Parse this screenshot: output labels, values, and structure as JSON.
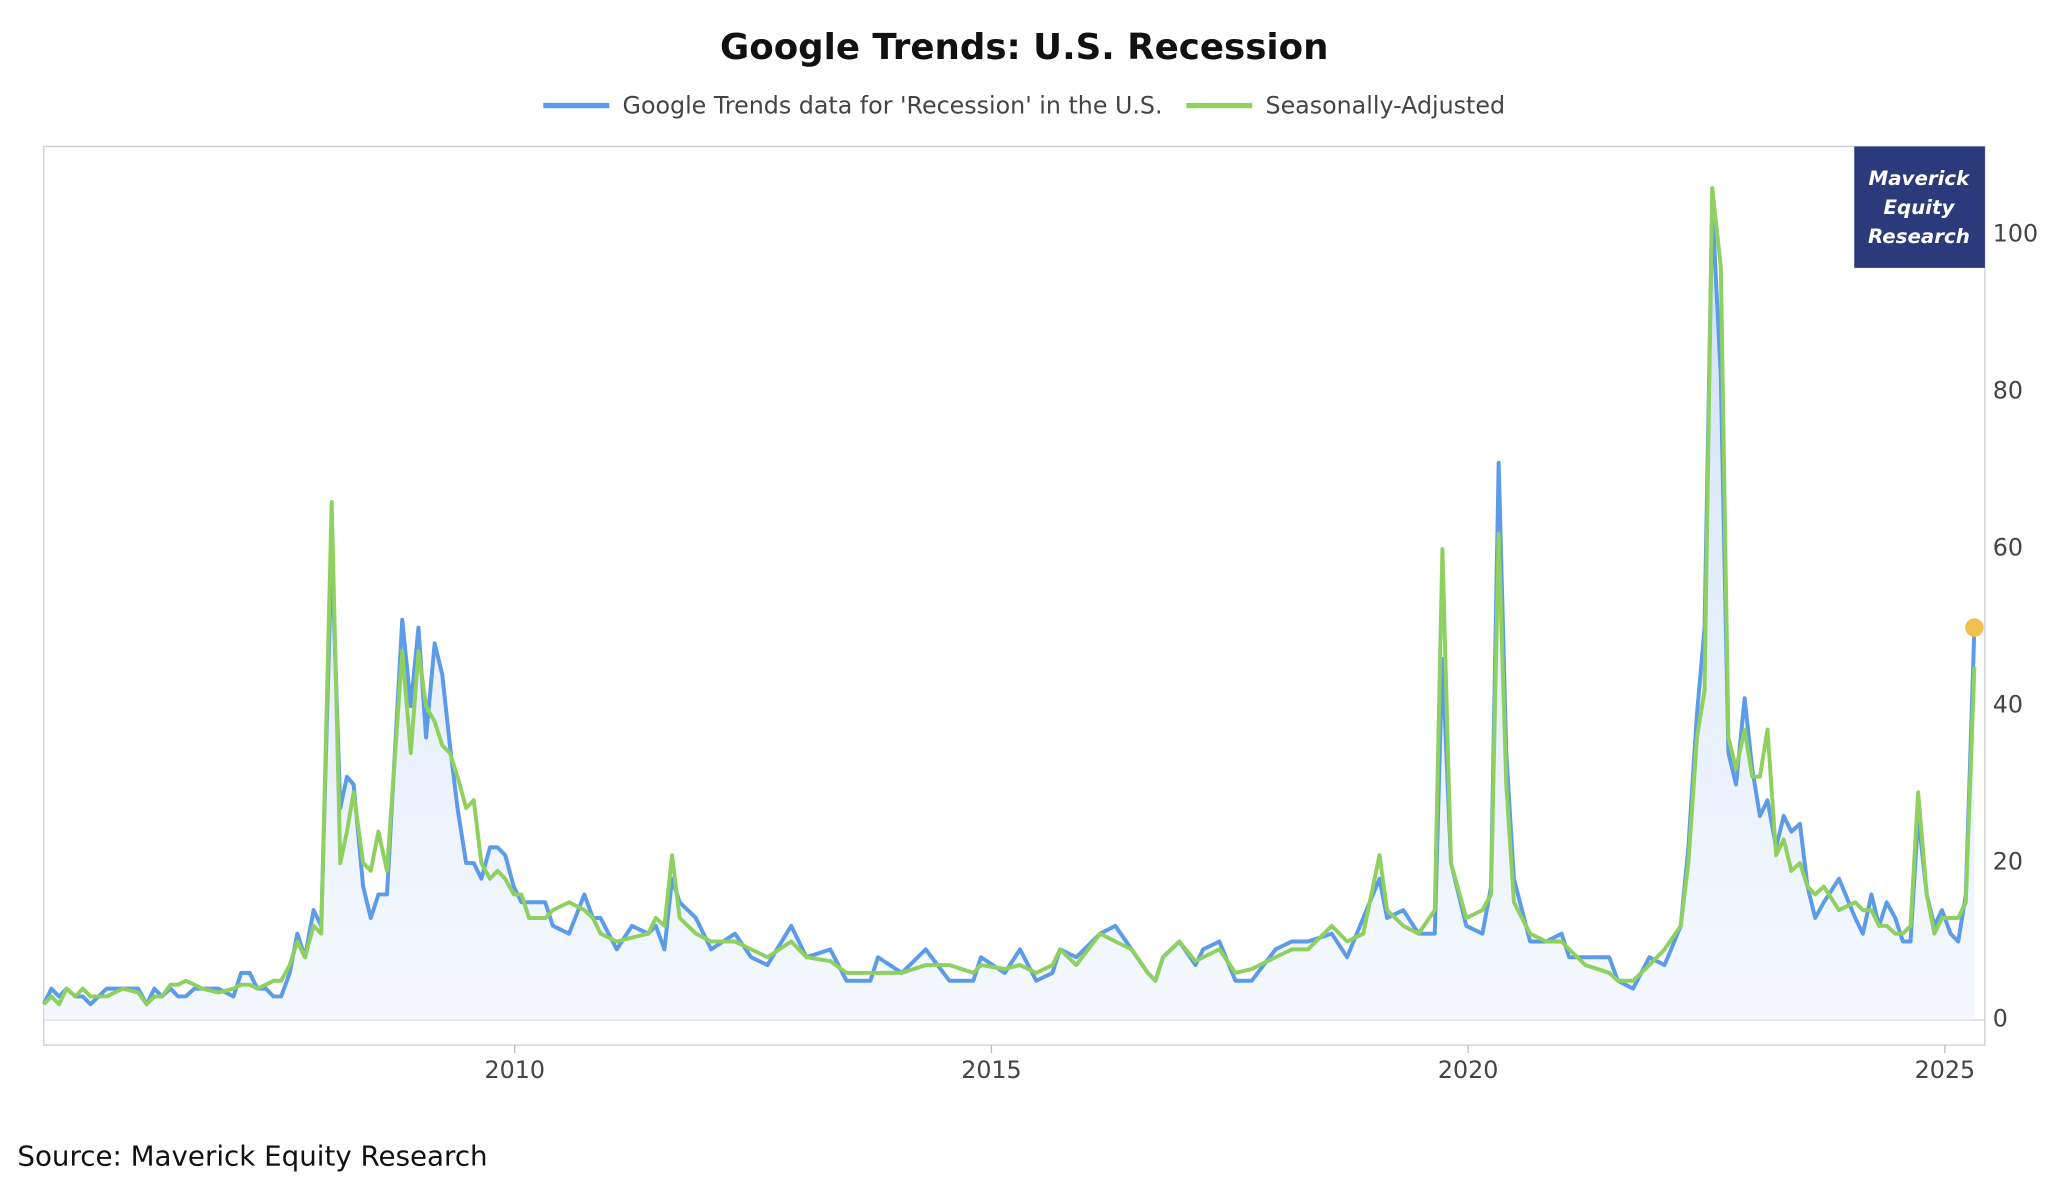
{
  "chart_data": {
    "type": "line",
    "title": "Google Trends: U.S. Recession",
    "source": "Source: Maverick Equity Research",
    "badge": [
      "Maverick",
      "Equity",
      "Research"
    ],
    "x": [
      2005.06,
      2005.14,
      2005.22,
      2005.3,
      2005.39,
      2005.47,
      2005.55,
      2005.72,
      2005.89,
      2006.05,
      2006.14,
      2006.22,
      2006.3,
      2006.39,
      2006.47,
      2006.55,
      2006.64,
      2006.72,
      2006.89,
      2007.05,
      2007.13,
      2007.22,
      2007.3,
      2007.39,
      2007.47,
      2007.55,
      2007.64,
      2007.72,
      2007.8,
      2007.89,
      2007.97,
      2008.08,
      2008.17,
      2008.24,
      2008.31,
      2008.41,
      2008.49,
      2008.57,
      2008.66,
      2008.82,
      2008.91,
      2008.99,
      2009.07,
      2009.16,
      2009.24,
      2009.32,
      2009.4,
      2009.49,
      2009.57,
      2009.65,
      2009.74,
      2009.82,
      2009.9,
      2009.99,
      2010.07,
      2010.15,
      2010.32,
      2010.4,
      2010.57,
      2010.73,
      2010.82,
      2010.9,
      2011.07,
      2011.23,
      2011.4,
      2011.48,
      2011.57,
      2011.65,
      2011.73,
      2011.9,
      2012.06,
      2012.31,
      2012.48,
      2012.65,
      2012.9,
      2013.06,
      2013.31,
      2013.48,
      2013.73,
      2013.81,
      2014.06,
      2014.31,
      2014.56,
      2014.81,
      2014.89,
      2015.14,
      2015.3,
      2015.47,
      2015.64,
      2015.72,
      2015.89,
      2016.14,
      2016.3,
      2016.47,
      2016.64,
      2016.72,
      2016.8,
      2016.97,
      2017.14,
      2017.22,
      2017.39,
      2017.56,
      2017.73,
      2017.98,
      2018.15,
      2018.32,
      2018.57,
      2018.73,
      2018.9,
      2019.07,
      2019.15,
      2019.32,
      2019.48,
      2019.65,
      2019.73,
      2019.82,
      2019.98,
      2020.15,
      2020.24,
      2020.32,
      2020.4,
      2020.48,
      2020.65,
      2020.82,
      2020.98,
      2021.06,
      2021.23,
      2021.48,
      2021.57,
      2021.73,
      2021.9,
      2022.06,
      2022.23,
      2022.31,
      2022.4,
      2022.48,
      2022.56,
      2022.65,
      2022.73,
      2022.81,
      2022.9,
      2022.98,
      2023.06,
      2023.14,
      2023.23,
      2023.31,
      2023.39,
      2023.48,
      2023.56,
      2023.64,
      2023.73,
      2023.89,
      2024.06,
      2024.14,
      2024.23,
      2024.31,
      2024.39,
      2024.48,
      2024.56,
      2024.64,
      2024.72,
      2024.81,
      2024.89,
      2024.97,
      2025.06,
      2025.14,
      2025.22,
      2025.31
    ],
    "series": [
      {
        "name": "Google Trends data for 'Recession' in the U.S.",
        "color": "#5b9be8",
        "area": true,
        "marker_color": "#f0c050",
        "values": [
          2,
          4,
          3,
          4,
          3,
          3,
          2,
          4,
          4,
          4,
          2,
          4,
          3,
          4,
          3,
          3,
          4,
          4,
          4,
          3,
          6,
          6,
          4,
          4,
          3,
          3,
          6,
          11,
          8,
          14,
          12,
          60,
          27,
          31,
          30,
          17,
          13,
          16,
          16,
          51,
          40,
          50,
          36,
          48,
          44,
          35,
          27,
          20,
          20,
          18,
          22,
          22,
          21,
          17,
          15,
          15,
          15,
          12,
          11,
          16,
          13,
          13,
          9,
          12,
          11,
          12,
          9,
          18,
          15,
          13,
          9,
          11,
          8,
          7,
          12,
          8,
          9,
          5,
          5,
          8,
          6,
          9,
          5,
          5,
          8,
          6,
          9,
          5,
          6,
          9,
          8,
          11,
          12,
          9,
          6,
          5,
          8,
          10,
          7,
          9,
          10,
          5,
          5,
          9,
          10,
          10,
          11,
          8,
          13,
          18,
          13,
          14,
          11,
          11,
          46,
          20,
          12,
          11,
          17,
          71,
          34,
          18,
          10,
          10,
          11,
          8,
          8,
          8,
          5,
          4,
          8,
          7,
          12,
          22,
          39,
          50,
          104,
          82,
          34,
          30,
          41,
          32,
          26,
          28,
          22,
          26,
          24,
          25,
          17,
          13,
          15,
          18,
          13,
          11,
          16,
          12,
          15,
          13,
          10,
          10,
          26,
          16,
          12,
          14,
          11,
          10,
          16,
          50
        ]
      },
      {
        "name": "Seasonally-Adjusted",
        "color": "#8ed160",
        "values": [
          2,
          3,
          2,
          4,
          3,
          4,
          3,
          3,
          4,
          3.5,
          2,
          3,
          3,
          4.5,
          4.5,
          5,
          4.5,
          4,
          3.5,
          4,
          4.5,
          4.5,
          4,
          4.5,
          5,
          5,
          7,
          10,
          8,
          12,
          11,
          66,
          20,
          24,
          29,
          20,
          19,
          24,
          19,
          47,
          34,
          47,
          40,
          38,
          35,
          34,
          31,
          27,
          28,
          20,
          18,
          19,
          18,
          16,
          16,
          13,
          13,
          14,
          15,
          14,
          13,
          11,
          10,
          10.5,
          11,
          13,
          12,
          21,
          13,
          11,
          10,
          10,
          9,
          8,
          10,
          8,
          7.5,
          6,
          6,
          6,
          6,
          7,
          7,
          6,
          7,
          6.5,
          7,
          6,
          7,
          9,
          7,
          11,
          10,
          9,
          6,
          5,
          8,
          10,
          7.5,
          8,
          9,
          6,
          6.5,
          8,
          9,
          9,
          12,
          10,
          11,
          21,
          14,
          12,
          11,
          14,
          60,
          20,
          13,
          14,
          16,
          62,
          30,
          15,
          11,
          10,
          10,
          9,
          7,
          6,
          5,
          5,
          7,
          9,
          12,
          20,
          36,
          42,
          106,
          96,
          36,
          32,
          37,
          31,
          31,
          37,
          21,
          23,
          19,
          20,
          17,
          16,
          17,
          14,
          15,
          14,
          14,
          12,
          12,
          11,
          11,
          12,
          29,
          16,
          11,
          13,
          13,
          13,
          15,
          45
        ]
      }
    ],
    "xlim": [
      2005.06,
      2025.42
    ],
    "ylim": [
      -3.2,
      111.3
    ],
    "xticks": [
      2010,
      2015,
      2020,
      2025
    ],
    "yticks": [
      0,
      20,
      40,
      60,
      80,
      100
    ],
    "y_axis_side": "right",
    "legend": "top"
  }
}
